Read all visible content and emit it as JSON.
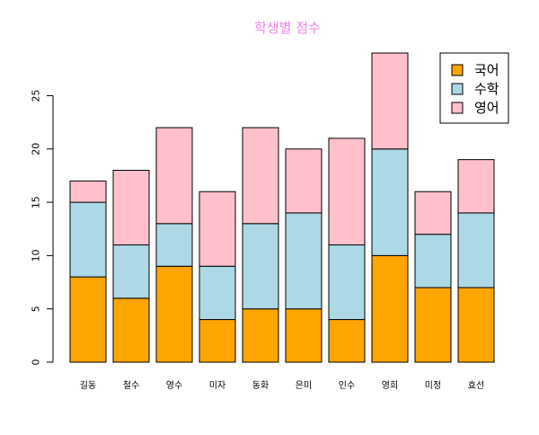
{
  "chart_data": {
    "type": "bar",
    "stacked": true,
    "title": "학생별 점수",
    "title_color": "#ee82ee",
    "xlabel": "",
    "ylabel": "",
    "categories": [
      "길동",
      "철수",
      "영수",
      "미자",
      "동화",
      "은미",
      "인수",
      "영희",
      "미정",
      "효선"
    ],
    "series": [
      {
        "name": "국어",
        "color": "#ffa500",
        "values": [
          8,
          6,
          9,
          4,
          5,
          5,
          4,
          10,
          7,
          7
        ]
      },
      {
        "name": "수학",
        "color": "#add8e6",
        "values": [
          7,
          5,
          4,
          5,
          8,
          9,
          7,
          10,
          5,
          7
        ]
      },
      {
        "name": "영어",
        "color": "#ffc0cb",
        "values": [
          2,
          7,
          9,
          7,
          9,
          6,
          10,
          9,
          4,
          5
        ]
      }
    ],
    "ylim": [
      0,
      29
    ],
    "yticks": [
      0,
      5,
      10,
      15,
      20,
      25
    ],
    "grid": false,
    "legend_position": "top-right"
  }
}
